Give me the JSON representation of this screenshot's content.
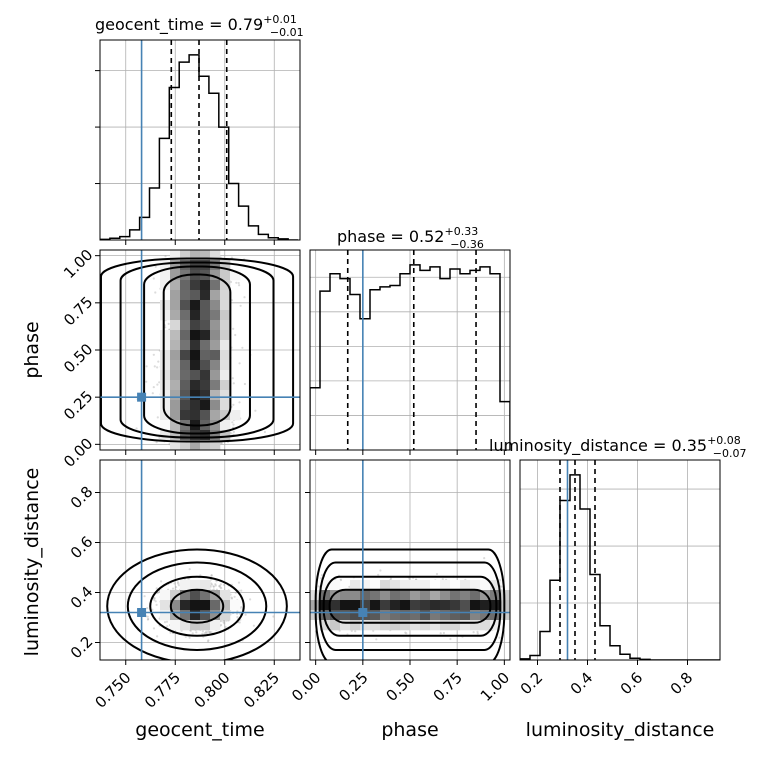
{
  "figure_type": "corner-plot",
  "colors": {
    "truth": "#4682b4",
    "hist": "#000000",
    "grid": "#b0b0b0",
    "points": "#9a9a9a"
  },
  "chart_data": [
    {
      "type": "histogram",
      "parameter": "geocent_time",
      "title": {
        "main": "geocent_time = 0.79",
        "sup": "+0.01",
        "sub": "−0.01"
      },
      "xlim": [
        0.737,
        0.838
      ],
      "bin_edges": [
        0.737,
        0.742,
        0.747,
        0.752,
        0.757,
        0.762,
        0.767,
        0.772,
        0.777,
        0.782,
        0.787,
        0.792,
        0.797,
        0.802,
        0.807,
        0.812,
        0.817,
        0.822,
        0.827,
        0.832,
        0.837
      ],
      "counts": [
        1,
        3,
        6,
        18,
        40,
        92,
        180,
        270,
        315,
        328,
        290,
        260,
        200,
        100,
        60,
        25,
        10,
        4,
        2,
        0
      ],
      "quantiles": [
        0.773,
        0.787,
        0.801
      ],
      "truth": 0.758
    },
    {
      "type": "scatter-density",
      "x_parameter": "geocent_time",
      "y_parameter": "phase",
      "xlim": [
        0.737,
        0.838
      ],
      "ylim": [
        -0.03,
        1.03
      ],
      "x_center": 0.786,
      "x_spread": 0.009,
      "y_range": [
        0.0,
        1.0
      ],
      "contour_rx_frac": [
        0.85,
        1.35,
        1.95,
        2.45
      ],
      "truth": [
        0.758,
        0.25
      ],
      "yticks": [
        0.0,
        0.25,
        0.5,
        0.75,
        1.0
      ],
      "ytick_labels": [
        "0.00",
        "0.25",
        "0.50",
        "0.75",
        "1.00"
      ],
      "ylabel": "phase"
    },
    {
      "type": "histogram",
      "parameter": "phase",
      "title": {
        "main": "phase = 0.52",
        "sup": "+0.33",
        "sub": "−0.36"
      },
      "xlim": [
        -0.03,
        1.03
      ],
      "bin_edges": [
        -0.03,
        0.023,
        0.076,
        0.129,
        0.182,
        0.235,
        0.288,
        0.341,
        0.394,
        0.447,
        0.5,
        0.553,
        0.606,
        0.659,
        0.712,
        0.765,
        0.818,
        0.871,
        0.924,
        0.977,
        1.03
      ],
      "counts": [
        90,
        230,
        255,
        248,
        225,
        190,
        232,
        236,
        238,
        255,
        268,
        260,
        265,
        248,
        262,
        255,
        260,
        265,
        255,
        70
      ],
      "quantiles": [
        0.17,
        0.52,
        0.85
      ],
      "truth": 0.25
    },
    {
      "type": "scatter-density",
      "x_parameter": "geocent_time",
      "y_parameter": "luminosity_distance",
      "xlim": [
        0.737,
        0.838
      ],
      "ylim": [
        0.13,
        0.93
      ],
      "x_center": 0.786,
      "x_spread": 0.009,
      "y_center": 0.345,
      "y_spread": 0.045,
      "contour_r_frac": [
        0.7,
        1.25,
        1.85,
        2.4
      ],
      "truth": [
        0.758,
        0.32
      ],
      "xticks": [
        0.75,
        0.775,
        0.8,
        0.825
      ],
      "xtick_labels": [
        "0.750",
        "0.775",
        "0.800",
        "0.825"
      ],
      "yticks": [
        0.2,
        0.4,
        0.6,
        0.8
      ],
      "ytick_labels": [
        "0.2",
        "0.4",
        "0.6",
        "0.8"
      ],
      "xlabel": "geocent_time",
      "ylabel": "luminosity_distance"
    },
    {
      "type": "scatter-density",
      "x_parameter": "phase",
      "y_parameter": "luminosity_distance",
      "xlim": [
        -0.03,
        1.03
      ],
      "ylim": [
        0.13,
        0.93
      ],
      "x_range": [
        0.0,
        1.0
      ],
      "y_center": 0.345,
      "y_spread": 0.045,
      "truth": [
        0.25,
        0.32
      ],
      "xticks": [
        0.0,
        0.25,
        0.5,
        0.75,
        1.0
      ],
      "xtick_labels": [
        "0.00",
        "0.25",
        "0.50",
        "0.75",
        "1.00"
      ],
      "xlabel": "phase"
    },
    {
      "type": "histogram",
      "parameter": "luminosity_distance",
      "title": {
        "main": "luminosity_distance = 0.35",
        "sup": "+0.08",
        "sub": "−0.07"
      },
      "xlim": [
        0.13,
        0.93
      ],
      "bin_edges": [
        0.13,
        0.17,
        0.21,
        0.25,
        0.29,
        0.33,
        0.37,
        0.41,
        0.45,
        0.49,
        0.53,
        0.57,
        0.61,
        0.65,
        0.69,
        0.73,
        0.77,
        0.81,
        0.85,
        0.89,
        0.93
      ],
      "counts": [
        2,
        8,
        50,
        140,
        280,
        325,
        265,
        150,
        60,
        25,
        10,
        3,
        1,
        0,
        0,
        0,
        0,
        0,
        0,
        0
      ],
      "quantiles": [
        0.29,
        0.35,
        0.43
      ],
      "truth": 0.32,
      "xticks": [
        0.2,
        0.4,
        0.6,
        0.8
      ],
      "xtick_labels": [
        "0.2",
        "0.4",
        "0.6",
        "0.8"
      ],
      "xlabel": "luminosity_distance"
    }
  ]
}
